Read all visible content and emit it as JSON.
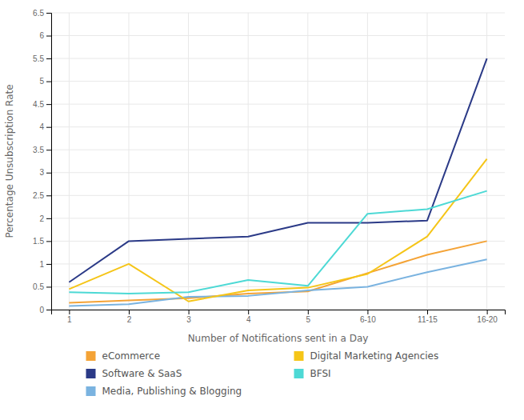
{
  "chart_data": {
    "type": "line",
    "xlabel": "Number of Notifications sent in a Day",
    "ylabel": "Percentage Unsubscription Rate",
    "categories": [
      "1",
      "2",
      "3",
      "4",
      "5",
      "6-10",
      "11-15",
      "16-20"
    ],
    "series": [
      {
        "name": "eCommerce",
        "color": "#f4a336",
        "values": [
          0.15,
          0.2,
          0.25,
          0.35,
          0.4,
          0.8,
          1.2,
          1.5
        ]
      },
      {
        "name": "Software & SaaS",
        "color": "#2b3a87",
        "values": [
          0.6,
          1.5,
          1.55,
          1.6,
          1.9,
          1.9,
          1.95,
          5.5
        ]
      },
      {
        "name": "Media, Publishing & Blogging",
        "color": "#7ab3e0",
        "values": [
          0.08,
          0.12,
          0.28,
          0.3,
          0.42,
          0.5,
          0.82,
          1.1
        ]
      },
      {
        "name": "Digital Marketing Agencies",
        "color": "#f5c518",
        "values": [
          0.45,
          1.0,
          0.18,
          0.42,
          0.48,
          0.78,
          1.6,
          3.3
        ]
      },
      {
        "name": "BFSI",
        "color": "#4dd9d5",
        "values": [
          0.38,
          0.35,
          0.38,
          0.65,
          0.52,
          2.1,
          2.2,
          2.6
        ]
      }
    ],
    "ylim": [
      0,
      6.5
    ],
    "yticks": [
      0,
      0.5,
      1,
      1.5,
      2,
      2.5,
      3,
      3.5,
      4,
      4.5,
      5,
      5.5,
      6,
      6.5
    ],
    "grid": true,
    "legend": "bottom"
  }
}
